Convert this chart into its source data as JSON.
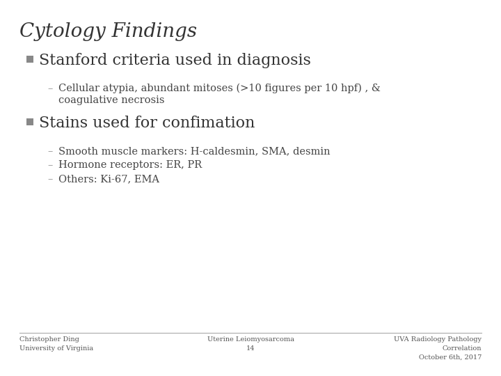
{
  "title": "Cytology Findings",
  "background_color": "#ffffff",
  "title_color": "#333333",
  "bullet1_text": "Stanford criteria used in diagnosis",
  "sub1a_line1": "Cellular atypia, abundant mitoses (>10 figures per 10 hpf) , &",
  "sub1a_line2": "coagulative necrosis",
  "bullet2_text": "Stains used for confimation",
  "sub2a": "Smooth muscle markers: H-caldesmin, SMA, desmin",
  "sub2b": "Hormone receptors: ER, PR",
  "sub2c": "Others: Ki-67, EMA",
  "footer_left_line1": "Christopher Ding",
  "footer_left_line2": "University of Virginia",
  "footer_center_line1": "Uterine Leiomyosarcoma",
  "footer_center_line2": "14",
  "footer_right_line1": "UVA Radiology Pathology",
  "footer_right_line2": "Correlation",
  "footer_right_line3": "October 6th, 2017",
  "footer_color": "#555555",
  "line_color": "#aaaaaa",
  "bullet_square_color": "#888888",
  "dash_color": "#888888",
  "text_color": "#333333",
  "sub_text_color": "#444444",
  "title_fontsize": 20,
  "bullet_fontsize": 16,
  "sub_fontsize": 10.5,
  "footer_fontsize": 7
}
